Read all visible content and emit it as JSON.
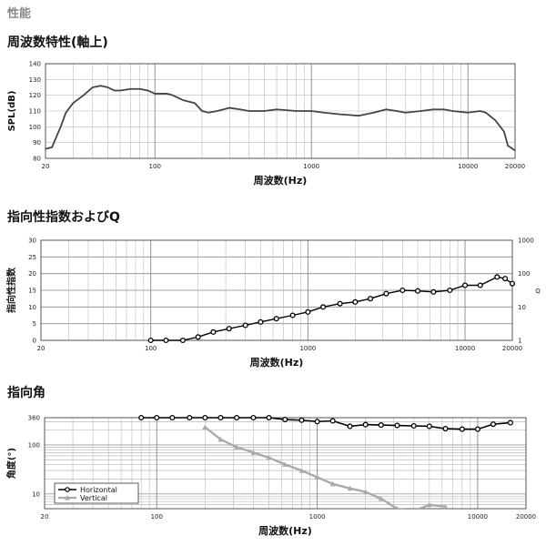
{
  "page": {
    "section_label": "性能",
    "titles": [
      "周波数特性(軸上)",
      "指向性指数およびQ",
      "指向角"
    ]
  },
  "chart_data": [
    {
      "type": "line",
      "title": "周波数特性(軸上)",
      "xlabel": "周波数(Hz)",
      "ylabel": "SPL(dB)",
      "xscale": "log",
      "xlim": [
        20,
        20000
      ],
      "ylim": [
        80,
        140
      ],
      "x_tick_labels": [
        "20",
        "100",
        "1000",
        "10000",
        "20000"
      ],
      "y_tick_labels": [
        "80",
        "90",
        "100",
        "110",
        "120",
        "130",
        "140"
      ],
      "grid": true,
      "series": [
        {
          "color": "#444444",
          "x": [
            20,
            22,
            25,
            27,
            30,
            35,
            40,
            45,
            50,
            55,
            60,
            70,
            80,
            90,
            100,
            110,
            120,
            130,
            150,
            180,
            200,
            220,
            250,
            300,
            350,
            400,
            500,
            600,
            800,
            1000,
            1200,
            1500,
            2000,
            2500,
            3000,
            3500,
            4000,
            5000,
            6000,
            7000,
            8000,
            10000,
            12000,
            13000,
            15000,
            17000,
            18000,
            20000
          ],
          "y": [
            86,
            87,
            100,
            109,
            115,
            120,
            125,
            126,
            125,
            123,
            123,
            124,
            124,
            123,
            121,
            121,
            121,
            120,
            117,
            115,
            110,
            109,
            110,
            112,
            111,
            110,
            110,
            111,
            110,
            110,
            109,
            108,
            107,
            109,
            111,
            110,
            109,
            110,
            111,
            111,
            110,
            109,
            110,
            109,
            104,
            97,
            88,
            85
          ]
        }
      ]
    },
    {
      "type": "line",
      "title": "指向性指数およびQ",
      "xlabel": "周波数(Hz)",
      "ylabel": "指向性指数",
      "y2label": "Q",
      "xscale": "log",
      "xlim": [
        20,
        20000
      ],
      "ylim": [
        0,
        30
      ],
      "y2lim": [
        1,
        1000
      ],
      "y2scale": "log",
      "x_tick_labels": [
        "20",
        "100",
        "1000",
        "10000",
        "20000"
      ],
      "y_tick_labels": [
        "0",
        "5",
        "10",
        "15",
        "20",
        "25",
        "30"
      ],
      "y2_tick_labels": [
        "1",
        "10",
        "100",
        "1000"
      ],
      "grid": true,
      "series": [
        {
          "color": "#000000",
          "marker": "circle",
          "x": [
            100,
            125,
            160,
            200,
            250,
            315,
            400,
            500,
            630,
            800,
            1000,
            1250,
            1600,
            2000,
            2500,
            3150,
            4000,
            5000,
            6300,
            8000,
            10000,
            12500,
            16000,
            18000,
            20000
          ],
          "y": [
            0,
            0,
            0,
            1,
            2.5,
            3.5,
            4.5,
            5.5,
            6.5,
            7.5,
            8.5,
            10,
            11,
            11.5,
            12.5,
            14,
            15,
            14.8,
            14.5,
            15,
            16.5,
            16.5,
            19,
            18.5,
            17
          ]
        }
      ]
    },
    {
      "type": "line",
      "title": "指向角",
      "xlabel": "周波数(Hz)",
      "ylabel": "角度(°)",
      "xscale": "log",
      "yscale": "log",
      "xlim": [
        20,
        20000
      ],
      "ylim": [
        5,
        360
      ],
      "x_tick_labels": [
        "20",
        "100",
        "1000",
        "10000",
        "20000"
      ],
      "y_tick_labels": [
        "10",
        "100",
        "360"
      ],
      "grid": true,
      "legend": "bottom-left",
      "series": [
        {
          "name": "Horizontal",
          "color": "#000000",
          "marker": "circle",
          "x": [
            80,
            100,
            125,
            160,
            200,
            250,
            315,
            400,
            500,
            630,
            800,
            1000,
            1250,
            1600,
            2000,
            2500,
            3150,
            4000,
            5000,
            6300,
            8000,
            10000,
            12500,
            16000
          ],
          "y": [
            360,
            360,
            360,
            360,
            360,
            360,
            360,
            360,
            360,
            330,
            320,
            300,
            310,
            240,
            260,
            255,
            250,
            245,
            240,
            215,
            210,
            210,
            265,
            285
          ]
        },
        {
          "name": "Vertical",
          "color": "#aaaaaa",
          "marker": "triangle",
          "x": [
            200,
            250,
            315,
            400,
            500,
            630,
            800,
            1000,
            1250,
            1600,
            2000,
            2500,
            3150,
            4000,
            5000,
            6300
          ],
          "y": [
            230,
            130,
            90,
            70,
            55,
            40,
            30,
            22,
            16,
            13,
            11,
            8,
            5,
            4.5,
            6,
            5.5
          ]
        }
      ]
    }
  ]
}
